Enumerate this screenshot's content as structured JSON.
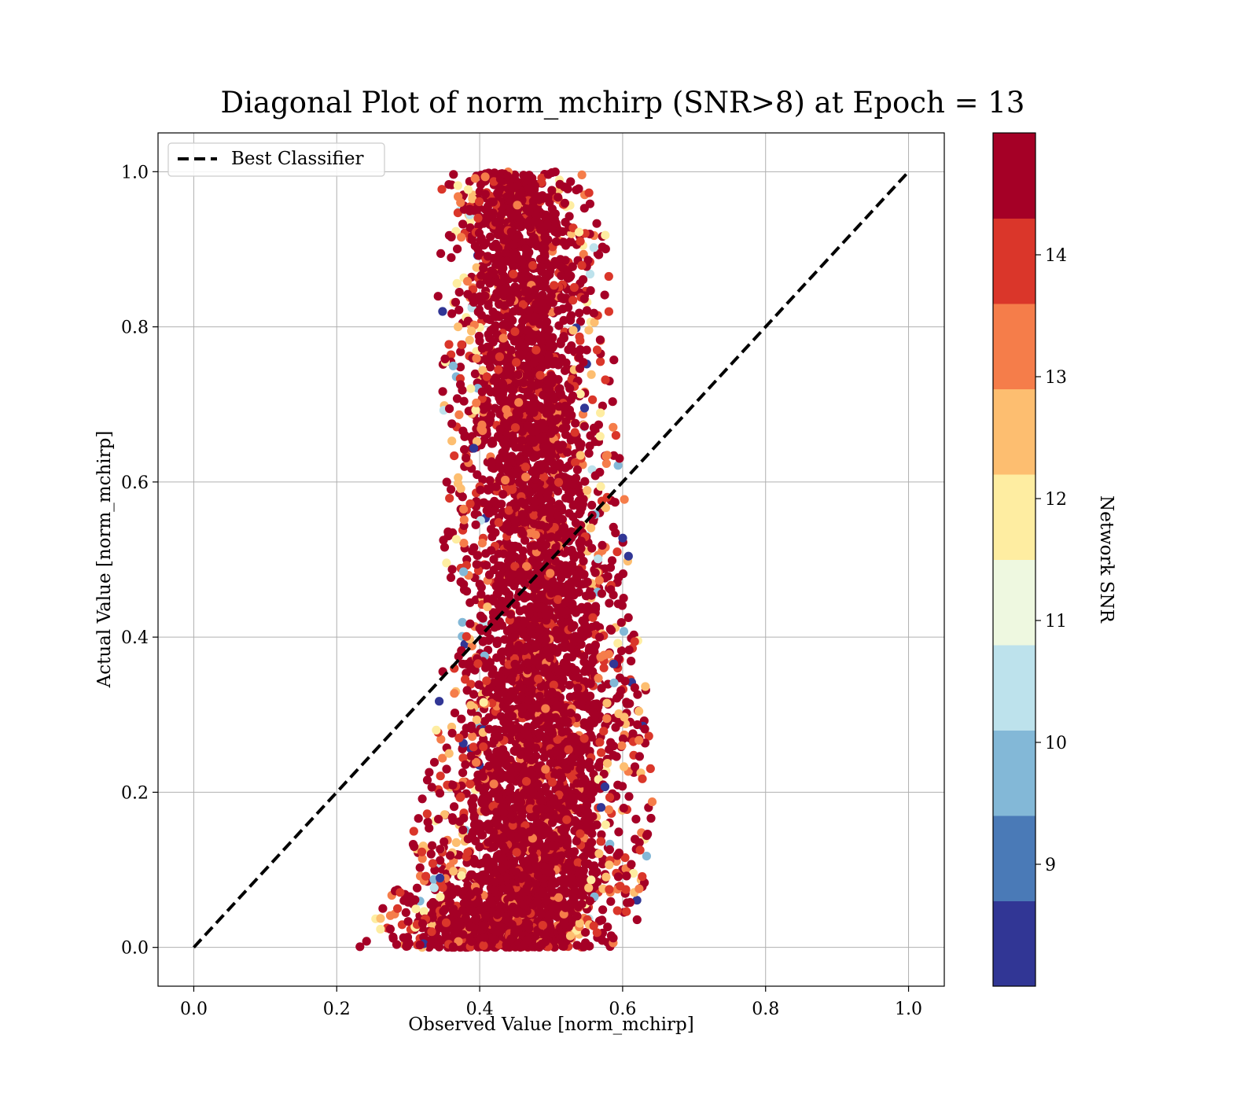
{
  "chart_data": {
    "type": "scatter",
    "title": "Diagonal Plot of norm_mchirp (SNR>8) at Epoch = 13",
    "xlabel": "Observed Value [norm_mchirp]",
    "ylabel": "Actual Value [norm_mchirp]",
    "xlim": [
      -0.05,
      1.05
    ],
    "ylim": [
      -0.05,
      1.05
    ],
    "xticks": [
      "0.0",
      "0.2",
      "0.4",
      "0.6",
      "0.8",
      "1.0"
    ],
    "yticks": [
      "0.0",
      "0.2",
      "0.4",
      "0.6",
      "0.8",
      "1.0"
    ],
    "grid": true,
    "legend": {
      "position": "upper-left",
      "entries": [
        "Best Classifier"
      ]
    },
    "reference_line": {
      "name": "Best Classifier",
      "style": "dashed",
      "color": "#000000",
      "x": [
        0.0,
        1.0
      ],
      "y": [
        0.0,
        1.0
      ]
    },
    "colorbar": {
      "label": "Network SNR",
      "range": [
        8,
        15
      ],
      "ticks": [
        "9",
        "10",
        "11",
        "12",
        "13",
        "14"
      ],
      "colors": [
        "#313695",
        "#4575b4",
        "#74add1",
        "#abd9e9",
        "#e0f3f8",
        "#ffffbf",
        "#fee090",
        "#fdae61",
        "#f46d43",
        "#d73027",
        "#a50026"
      ],
      "bins": [
        {
          "snr_min": 8.0,
          "snr_max": 8.7,
          "color": "#313695"
        },
        {
          "snr_min": 8.7,
          "snr_max": 9.4,
          "color": "#4a7ab7"
        },
        {
          "snr_min": 9.4,
          "snr_max": 10.1,
          "color": "#83b8d7"
        },
        {
          "snr_min": 10.1,
          "snr_max": 10.8,
          "color": "#bde2ec"
        },
        {
          "snr_min": 10.8,
          "snr_max": 11.5,
          "color": "#eef8e0"
        },
        {
          "snr_min": 11.5,
          "snr_max": 12.2,
          "color": "#feeda1"
        },
        {
          "snr_min": 12.2,
          "snr_max": 12.9,
          "color": "#fdbe70"
        },
        {
          "snr_min": 12.9,
          "snr_max": 13.6,
          "color": "#f57d4a"
        },
        {
          "snr_min": 13.6,
          "snr_max": 14.3,
          "color": "#da362a"
        },
        {
          "snr_min": 14.3,
          "snr_max": 15.0,
          "color": "#a50026"
        }
      ]
    },
    "distribution": {
      "description_of_band": "dense column of predictions",
      "observed_center_by_actual": [
        {
          "actual": 0.0,
          "center": 0.42,
          "halfwidth": 0.14
        },
        {
          "actual": 0.1,
          "center": 0.47,
          "halfwidth": 0.13
        },
        {
          "actual": 0.3,
          "center": 0.49,
          "halfwidth": 0.11
        },
        {
          "actual": 0.5,
          "center": 0.48,
          "halfwidth": 0.1
        },
        {
          "actual": 0.7,
          "center": 0.47,
          "halfwidth": 0.09
        },
        {
          "actual": 0.9,
          "center": 0.46,
          "halfwidth": 0.09
        },
        {
          "actual": 1.0,
          "center": 0.45,
          "halfwidth": 0.08
        }
      ]
    }
  }
}
